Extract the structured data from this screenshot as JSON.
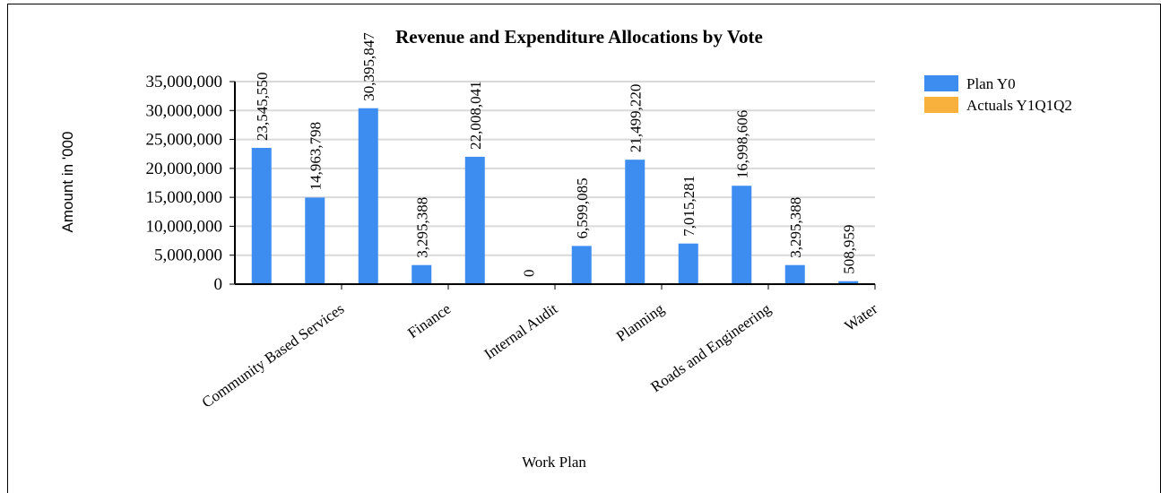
{
  "chart_data": {
    "type": "bar",
    "title": "Revenue and Expenditure Allocations by Vote",
    "xlabel": "Work Plan",
    "ylabel": "Amount in '000",
    "ylim": [
      0,
      35000000
    ],
    "yticks": [
      "0",
      "5,000,000",
      "10,000,000",
      "15,000,000",
      "20,000,000",
      "25,000,000",
      "30,000,000",
      "35,000,000"
    ],
    "ytick_values": [
      0,
      5000000,
      10000000,
      15000000,
      20000000,
      25000000,
      30000000,
      35000000
    ],
    "grid": true,
    "legend_position": "top-right",
    "visible_category_labels": [
      "Community Based Services",
      "Finance",
      "Internal Audit",
      "Planning",
      "Roads and Engineering",
      "Water"
    ],
    "series": [
      {
        "name": "Plan Y0",
        "color": "#3d8cf0",
        "values": [
          23545550,
          14963798,
          30395847,
          3295388,
          22008041,
          0,
          6599085,
          21499220,
          7015281,
          16998606,
          3295388,
          508959
        ],
        "labels": [
          "23,545,550",
          "14,963,798",
          "30,395,847",
          "3,295,388",
          "22,008,041",
          "0",
          "6,599,085",
          "21,499,220",
          "7,015,281",
          "16,998,606",
          "3,295,388",
          "508,959"
        ]
      },
      {
        "name": "Actuals Y1Q1Q2",
        "color": "#f9b13d",
        "values": [
          0,
          0,
          0,
          0,
          0,
          0,
          0,
          0,
          0,
          0,
          0,
          0
        ]
      }
    ]
  }
}
